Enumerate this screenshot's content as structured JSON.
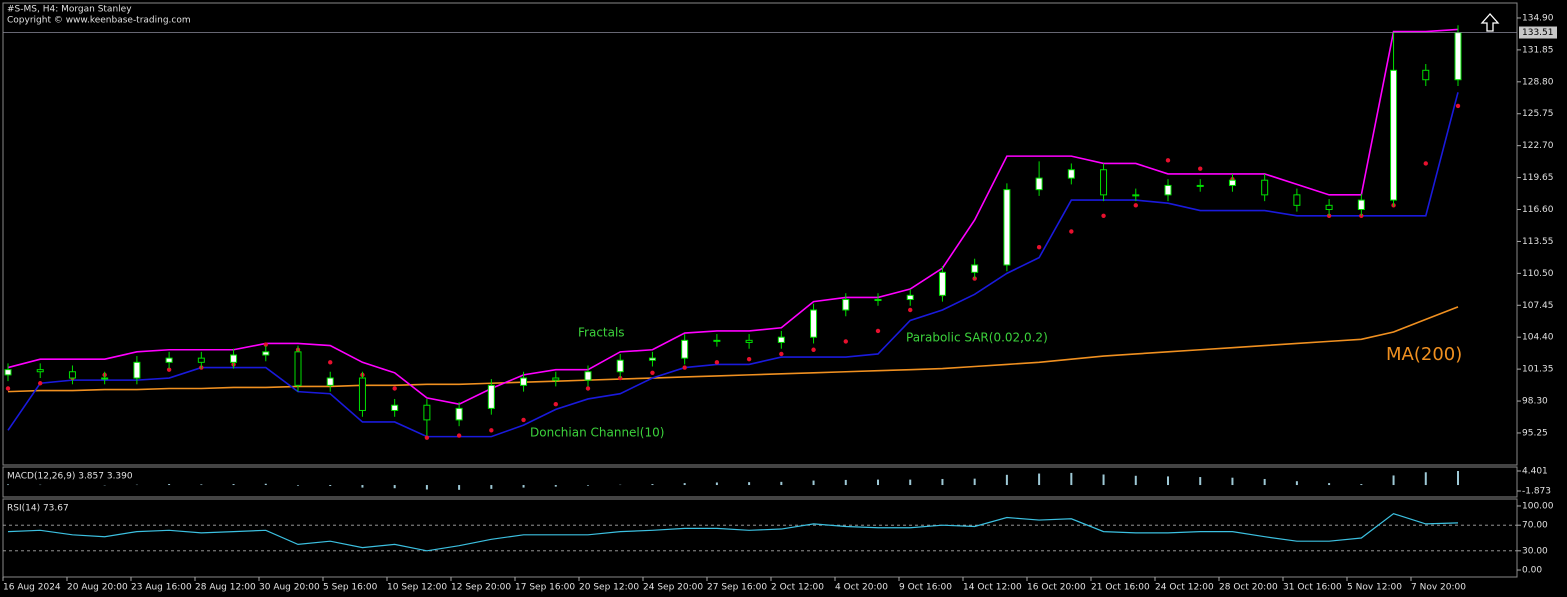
{
  "chart_data": [
    {
      "type": "candlestick",
      "title": "#S-MS, H4:  Morgan Stanley",
      "subtitle": "Copyright © www.keenbase-trading.com",
      "ylim": [
        92.19,
        136.33
      ],
      "yticks": [
        {
          "value": 134.9,
          "label": "134.90"
        },
        131.85,
        {
          "value": 128.8,
          "label": "128.80"
        },
        125.75,
        {
          "value": 122.7,
          "label": "122.70"
        },
        119.65,
        {
          "value": 116.6,
          "label": "116.60"
        },
        113.55,
        {
          "value": 110.5,
          "label": "110.50"
        },
        107.45,
        {
          "value": 104.4,
          "label": "104.40"
        },
        101.35,
        {
          "value": 98.3,
          "label": "98.30"
        },
        95.25
      ],
      "last_price": 133.51,
      "time_labels": [
        "16 Aug 2024",
        "20 Aug 20:00",
        "23 Aug 16:00",
        "28 Aug 12:00",
        "30 Aug 20:00",
        "5 Sep 16:00",
        "10 Sep 12:00",
        "12 Sep 20:00",
        "17 Sep 16:00",
        "20 Sep 12:00",
        "24 Sep 20:00",
        "27 Sep 16:00",
        "2 Oct 12:00",
        "4 Oct 20:00",
        "9 Oct 16:00",
        "14 Oct 12:00",
        "16 Oct 20:00",
        "21 Oct 16:00",
        "24 Oct 12:00",
        "28 Oct 20:00",
        "31 Oct 16:00",
        "5 Nov 12:00",
        "7 Nov 20:00"
      ],
      "candles": {
        "open": [
          100.8,
          101.3,
          101.1,
          100.5,
          100.5,
          102.0,
          102.4,
          102.0,
          102.7,
          103.0,
          99.8,
          100.5,
          97.4,
          97.9,
          96.5,
          97.6,
          99.8,
          100.5,
          100.3,
          101.1,
          102.2,
          102.4,
          104.1,
          104.1,
          103.9,
          104.4,
          107.0,
          108.0,
          108.0,
          108.4,
          110.6,
          111.3,
          118.5,
          119.6,
          120.4,
          118.0,
          118.0,
          118.9,
          118.9,
          119.4,
          118.0,
          117.0,
          116.6,
          117.5,
          129.9,
          129.0
        ],
        "high": [
          101.9,
          101.9,
          101.7,
          101.1,
          102.6,
          103.0,
          103.0,
          103.3,
          103.6,
          103.6,
          101.1,
          101.1,
          98.5,
          98.5,
          98.2,
          100.4,
          101.1,
          101.1,
          101.7,
          102.8,
          103.0,
          104.7,
          104.7,
          104.7,
          105.0,
          107.6,
          108.6,
          108.6,
          109.0,
          111.2,
          111.9,
          119.1,
          121.2,
          121.0,
          121.0,
          118.6,
          119.5,
          119.5,
          120.0,
          120.0,
          118.6,
          117.6,
          118.1,
          133.5,
          130.5,
          134.2
        ],
        "low": [
          100.2,
          100.5,
          99.9,
          99.9,
          99.9,
          101.4,
          101.4,
          101.4,
          102.1,
          99.2,
          99.2,
          96.8,
          96.8,
          95.0,
          95.9,
          97.0,
          99.2,
          99.7,
          99.7,
          100.5,
          101.6,
          101.8,
          103.5,
          103.3,
          103.3,
          103.8,
          106.4,
          107.4,
          107.4,
          107.8,
          110.0,
          110.7,
          117.9,
          119.0,
          117.4,
          117.4,
          117.4,
          118.3,
          118.3,
          117.4,
          116.4,
          116.0,
          116.0,
          116.9,
          128.4,
          128.4
        ],
        "close": [
          101.3,
          101.1,
          100.5,
          100.5,
          102.0,
          102.4,
          102.0,
          102.7,
          103.0,
          99.8,
          100.5,
          97.4,
          97.9,
          96.5,
          97.6,
          99.8,
          100.5,
          100.3,
          101.1,
          102.2,
          102.4,
          104.1,
          104.1,
          103.9,
          104.4,
          107.0,
          108.0,
          108.0,
          108.4,
          110.6,
          111.3,
          118.5,
          119.6,
          120.4,
          118.0,
          118.0,
          118.9,
          118.9,
          119.4,
          118.0,
          117.0,
          116.6,
          117.5,
          129.9,
          129.0,
          133.5
        ]
      },
      "series": [
        {
          "color": "#f09020",
          "style": "line",
          "values": [
            99.2,
            99.3,
            99.3,
            99.4,
            99.4,
            99.5,
            99.5,
            99.6,
            99.6,
            99.7,
            99.7,
            99.8,
            99.8,
            99.9,
            99.9,
            100.0,
            100.1,
            100.2,
            100.3,
            100.4,
            100.5,
            100.6,
            100.7,
            100.8,
            100.9,
            101.0,
            101.1,
            101.2,
            101.3,
            101.4,
            101.6,
            101.8,
            102.0,
            102.3,
            102.6,
            102.8,
            103.0,
            103.2,
            103.4,
            103.6,
            103.8,
            104.0,
            104.2,
            104.9,
            106.1,
            107.3
          ]
        },
        {
          "color": "#ff00ff",
          "style": "line",
          "values": [
            101.5,
            102.3,
            102.3,
            102.3,
            103.0,
            103.2,
            103.2,
            103.2,
            103.8,
            103.8,
            103.6,
            102.0,
            101.0,
            98.6,
            98.0,
            99.5,
            100.8,
            101.3,
            101.3,
            103.0,
            103.2,
            104.8,
            105.0,
            105.0,
            105.3,
            107.8,
            108.2,
            108.2,
            109.0,
            111.0,
            115.6,
            121.7,
            121.7,
            121.7,
            121.0,
            121.0,
            120.0,
            120.0,
            120.0,
            120.0,
            119.0,
            118.0,
            118.0,
            133.6,
            133.6,
            133.8
          ]
        },
        {
          "color": "#1a1adc",
          "style": "line",
          "values": [
            95.5,
            100.0,
            100.3,
            100.3,
            100.3,
            100.5,
            101.5,
            101.5,
            101.5,
            99.2,
            99.0,
            96.3,
            96.3,
            94.9,
            94.9,
            94.9,
            96.0,
            97.5,
            98.5,
            99.0,
            100.5,
            101.5,
            101.8,
            101.8,
            102.5,
            102.5,
            102.5,
            102.8,
            106.0,
            107.0,
            108.5,
            110.5,
            112.0,
            117.5,
            117.5,
            117.5,
            117.2,
            116.5,
            116.5,
            116.5,
            116.0,
            116.0,
            116.0,
            116.0,
            116.0,
            127.8
          ]
        },
        {
          "color": "#e8102e",
          "style": "dots",
          "values": [
            99.5,
            100.0,
            100.5,
            100.8,
            101.0,
            101.3,
            101.5,
            101.8,
            103.7,
            103.2,
            102.0,
            100.8,
            99.5,
            94.8,
            95.0,
            95.5,
            96.5,
            98.0,
            99.5,
            100.5,
            101.0,
            101.5,
            102.0,
            102.3,
            102.8,
            103.2,
            104.0,
            105.0,
            107.0,
            108.5,
            110.0,
            111.5,
            113.0,
            114.5,
            116.0,
            117.0,
            121.3,
            120.5,
            119.5,
            118.5,
            117.5,
            116.0,
            116.0,
            117.0,
            121.0,
            126.5
          ]
        }
      ],
      "annotations": [
        "Fractals",
        "Parabolic SAR(0.02,0.2)",
        "Donchian Channel(10)",
        "MA(200)"
      ]
    },
    {
      "type": "bar",
      "title": "MACD(12,26,9) 3.857 3.390",
      "ylim": [
        -3.75,
        5.65
      ],
      "yticks": [
        4.401,
        -1.873
      ],
      "color": "#9ec9d6",
      "values": [
        0.2,
        0.1,
        0.0,
        -0.1,
        0.1,
        0.3,
        0.2,
        0.3,
        0.4,
        -0.2,
        -0.3,
        -0.8,
        -1.0,
        -1.4,
        -1.5,
        -1.2,
        -0.8,
        -0.5,
        -0.2,
        0.1,
        0.3,
        0.6,
        0.8,
        0.9,
        1.0,
        1.4,
        1.6,
        1.7,
        1.7,
        1.9,
        2.0,
        3.2,
        3.6,
        3.8,
        3.3,
        2.9,
        2.7,
        2.5,
        2.3,
        1.9,
        1.2,
        0.6,
        0.3,
        3.0,
        4.0,
        4.4
      ]
    },
    {
      "type": "line",
      "title": "RSI(14) 73.67",
      "ylim": [
        -10.9,
        110.9
      ],
      "yticks": [
        {
          "value": 100,
          "label": "100.00"
        },
        {
          "value": 70,
          "label": "70.00"
        },
        {
          "value": 30,
          "label": "30.00"
        },
        {
          "value": 0,
          "label": "0.00"
        }
      ],
      "levels": [
        70,
        30
      ],
      "color": "#3cc0e0",
      "values": [
        60,
        62,
        55,
        52,
        60,
        62,
        58,
        60,
        62,
        40,
        45,
        35,
        40,
        30,
        38,
        48,
        55,
        55,
        55,
        60,
        62,
        65,
        65,
        62,
        64,
        72,
        68,
        66,
        66,
        70,
        68,
        82,
        78,
        80,
        60,
        58,
        58,
        60,
        60,
        52,
        45,
        45,
        50,
        88,
        72,
        73.67
      ]
    }
  ]
}
